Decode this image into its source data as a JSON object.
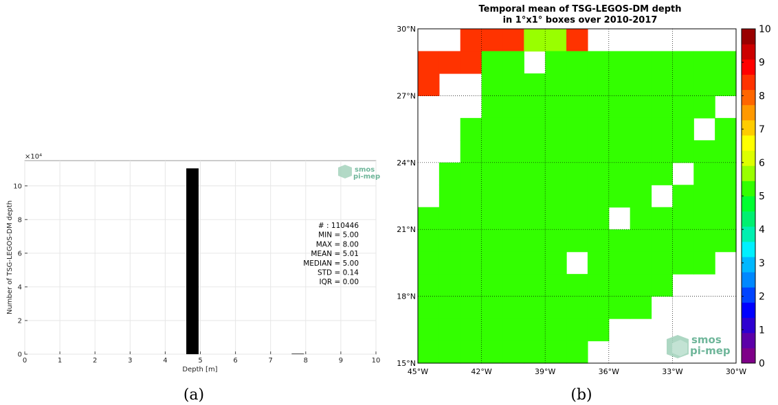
{
  "chart_data": [
    {
      "type": "bar",
      "title": "",
      "xlabel": "Depth [m]",
      "ylabel": "Number of TSG-LEGOS-DM depth",
      "y_multiplier": "×10⁴",
      "xlim": [
        0,
        10
      ],
      "ylim": [
        0,
        115000
      ],
      "x_ticks": [
        "0",
        "1",
        "2",
        "3",
        "4",
        "5",
        "6",
        "7",
        "8",
        "9",
        "10"
      ],
      "y_ticks": [
        "0",
        "2",
        "4",
        "6",
        "8",
        "10"
      ],
      "grid": true,
      "bars": [
        {
          "x0": 4.6,
          "x1": 4.95,
          "value": 110400
        },
        {
          "x0": 7.6,
          "x1": 7.95,
          "value": 300
        }
      ],
      "stats": [
        {
          "key": "#",
          "text": "# : 110446"
        },
        {
          "key": "MIN",
          "text": "MIN = 5.00"
        },
        {
          "key": "MAX",
          "text": "MAX =  8.00"
        },
        {
          "key": "MEAN",
          "text": "MEAN = 5.01"
        },
        {
          "key": "MEDIAN",
          "text": "MEDIAN = 5.00"
        },
        {
          "key": "STD",
          "text": "STD = 0.14"
        },
        {
          "key": "IQR",
          "text": "IQR = 0.00"
        }
      ],
      "caption": "(a)",
      "logo": {
        "line1": "smos",
        "line2": "pi-mep"
      }
    },
    {
      "type": "heatmap",
      "title_lines": [
        "Temporal mean of TSG-LEGOS-DM depth",
        "in 1°x1° boxes over 2010-2017"
      ],
      "lon_range": [
        -45,
        -30
      ],
      "lat_range": [
        15,
        30
      ],
      "x_ticks": [
        "45°W",
        "42°W",
        "39°W",
        "36°W",
        "33°W",
        "30°W"
      ],
      "y_ticks": [
        "15°N",
        "18°N",
        "21°N",
        "24°N",
        "27°N",
        "30°N"
      ],
      "grid": true,
      "colorbar_range": [
        0,
        10
      ],
      "colorbar_ticks": [
        "0",
        "1",
        "2",
        "3",
        "4",
        "5",
        "6",
        "7",
        "8",
        "9",
        "10"
      ],
      "colorbar_colors": [
        "#7e0088",
        "#5c00a8",
        "#2e00d0",
        "#0000ff",
        "#0044ff",
        "#0088ff",
        "#00b8ff",
        "#00f0ff",
        "#00f0b0",
        "#00f070",
        "#00ff30",
        "#33ff00",
        "#99ff00",
        "#ddff00",
        "#ffff00",
        "#ffcc00",
        "#ff9900",
        "#ff6600",
        "#ff3300",
        "#ff0000",
        "#cc0000",
        "#990000"
      ],
      "color_legend": {
        "G": "#33ff00",
        "Y": "#99ff00",
        "R": "#ff3300",
        ".": "none"
      },
      "rows_north_to_south": [
        "..RRRYYR.......",
        "RRRGG.GGGGGGGGG",
        "R..GGGGGGGGGGGG",
        "...GGGGGGGGGGG.",
        "..GGGGGGGGGGG.G",
        "..GGGGGGGGGGGGG",
        ".GGGGGGGGGGG.GG",
        ".GGGGGGGGGG.GGG",
        "GGGGGGGGG.GGGGG",
        "GGGGGGGGGGGGGGG",
        "GGGGGGG.GGGGGG.",
        "GGGGGGGGGGGG...",
        "GGGGGGGGGGG....",
        "GGGGGGGGG......",
        "GGGGGGGG......."
      ],
      "caption": "(b)",
      "logo": {
        "line1": "smos",
        "line2": "pi-mep"
      }
    }
  ]
}
